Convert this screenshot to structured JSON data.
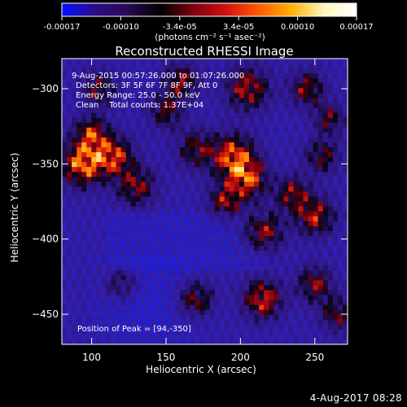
{
  "colorbar": {
    "ticks": [
      "-0.00017",
      "-0.00010",
      "-3.4e-05",
      "3.4e-05",
      "0.00010",
      "0.00017"
    ],
    "units_label": "(photons cm⁻² s⁻¹ asec⁻²)",
    "colors": [
      "#0012ff",
      "#2d0a8a",
      "#2a0a55",
      "#000000",
      "#7a0010",
      "#d01010",
      "#ff5a00",
      "#ffb000",
      "#fff6c0",
      "#ffffff"
    ]
  },
  "image": {
    "title": "Reconstructed RHESSI Image",
    "info_lines": [
      "9-Aug-2015 00:57:26.000 to 01:07:26.000",
      "Detectors: 3F 5F 6F 7F 8F 9F, Att 0",
      "Energy Range: 25.0 - 50.0 keV",
      "Clean    Total counts: 1.37E+04"
    ],
    "peak_text": "Position of Peak = [94,-350]"
  },
  "chart_data": {
    "type": "heatmap",
    "title": "Reconstructed RHESSI Image",
    "xlabel": "Heliocentric X (arcsec)",
    "ylabel": "Heliocentric Y (arcsec)",
    "xlim": [
      80,
      272
    ],
    "ylim": [
      -470,
      -280
    ],
    "x_ticks": [
      100,
      150,
      200,
      250
    ],
    "y_ticks": [
      -300,
      -350,
      -400,
      -450
    ],
    "x_tick_labels": [
      "100",
      "150",
      "200",
      "250"
    ],
    "y_tick_labels": [
      "−300",
      "−350",
      "−400",
      "−450"
    ],
    "peak": [
      94,
      -350
    ],
    "value_range": [
      -0.00017,
      0.00017
    ]
  },
  "footer": {
    "date": "4-Aug-2017 08:28"
  }
}
